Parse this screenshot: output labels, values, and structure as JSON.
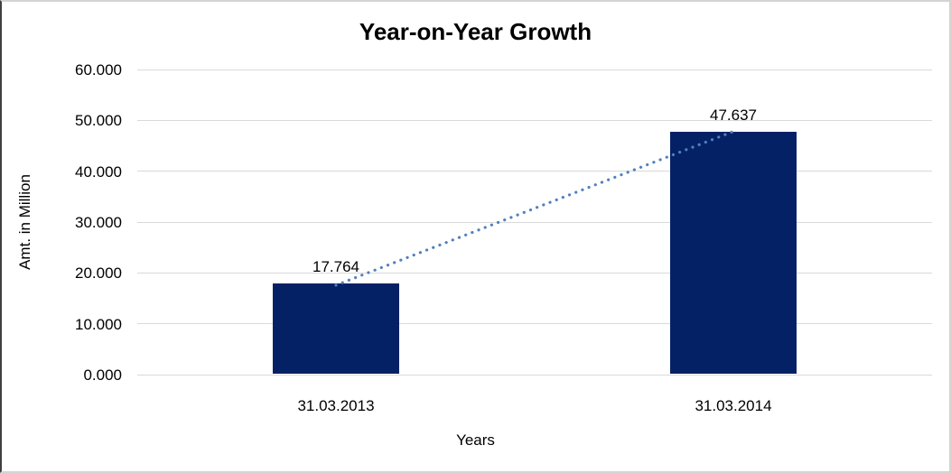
{
  "chart_data": {
    "type": "bar",
    "title": "Year-on-Year Growth",
    "xlabel": "Years",
    "ylabel": "Amt. in Million",
    "categories": [
      "31.03.2013",
      "31.03.2014"
    ],
    "values": [
      17.764,
      47.637
    ],
    "data_labels": [
      "17.764",
      "47.637"
    ],
    "ytick_labels": [
      "0.000",
      "10.000",
      "20.000",
      "30.000",
      "40.000",
      "50.000",
      "60.000"
    ],
    "ytick_values": [
      0,
      10,
      20,
      30,
      40,
      50,
      60
    ],
    "ylim": [
      0,
      60
    ],
    "grid": true,
    "legend_position": "none",
    "bar_color": "#052166",
    "gridline_color": "#d9d9d9",
    "trendline": {
      "style": "dotted",
      "color": "#4f81bd",
      "from_value": 17.764,
      "to_value": 47.637
    }
  }
}
